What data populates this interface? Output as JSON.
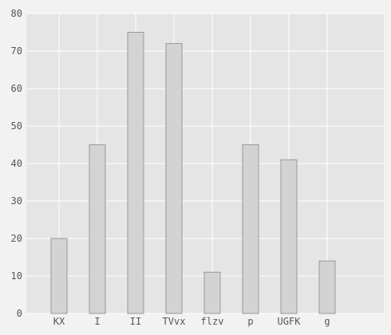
{
  "chart_data": {
    "type": "bar",
    "title": "",
    "xlabel": "",
    "ylabel": "",
    "categories": [
      "KX",
      "I",
      "II",
      "TVvx",
      "flzv",
      "p",
      "UGFK",
      "g"
    ],
    "values": [
      20,
      45,
      75,
      72,
      11,
      45,
      41,
      14
    ],
    "ylim": [
      0,
      80
    ],
    "yticks": [
      0,
      10,
      20,
      30,
      40,
      50,
      60,
      70,
      80
    ],
    "grid": true,
    "legend": "none",
    "colors": {
      "background": "#f2f2f2",
      "plot_area": "#e5e5e5",
      "gridline": "#ffffff",
      "bar_fill": "#d3d3d3",
      "bar_stroke": "#999999",
      "text": "#555555"
    }
  }
}
